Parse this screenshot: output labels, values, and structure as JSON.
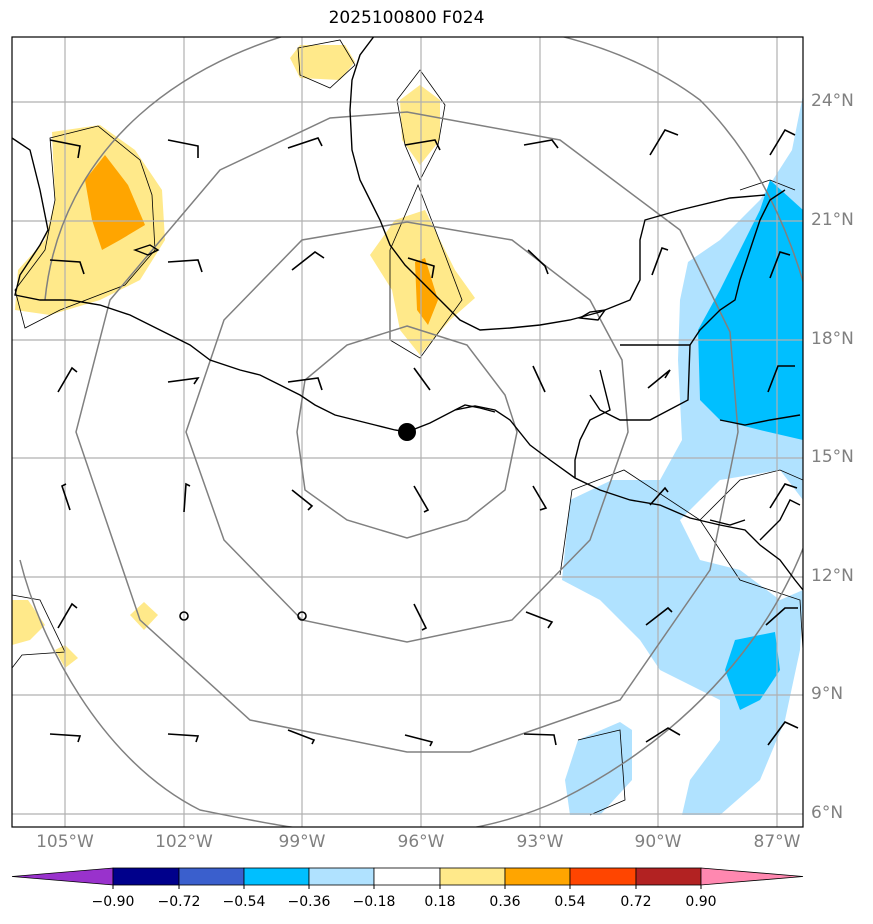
{
  "title": "2025100800 F024",
  "lat_labels": [
    "24°N",
    "21°N",
    "18°N",
    "15°N",
    "12°N",
    "9°N",
    "6°N"
  ],
  "lon_labels": [
    "105°W",
    "102°W",
    "99°W",
    "96°W",
    "93°W",
    "90°W",
    "87°W"
  ],
  "colorbar": {
    "ticks": [
      "−0.90",
      "−0.72",
      "−0.54",
      "−0.36",
      "−0.18",
      "0.18",
      "0.36",
      "0.54",
      "0.72",
      "0.90"
    ],
    "colors": [
      "#9932cc",
      "#00008b",
      "#3a5fcd",
      "#00bfff",
      "#b0e2ff",
      "#ffffff",
      "#ffe98a",
      "#ffa500",
      "#ff4500",
      "#b22222",
      "#ff88b0"
    ]
  },
  "shading_colors": {
    "light_blue": "#b0e2ff",
    "deep_sky_blue": "#00bfff",
    "light_yellow": "#ffe98a",
    "orange": "#ffa500"
  },
  "center_marker": "storm-center"
}
